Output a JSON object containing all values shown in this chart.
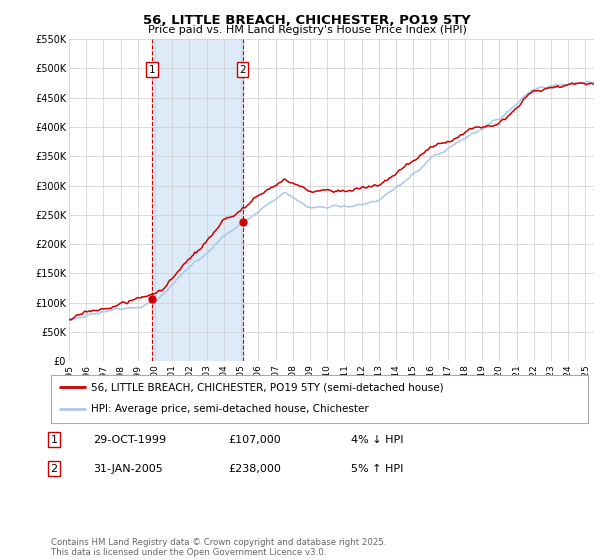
{
  "title": "56, LITTLE BREACH, CHICHESTER, PO19 5TY",
  "subtitle": "Price paid vs. HM Land Registry's House Price Index (HPI)",
  "x_start": 1995.0,
  "x_end": 2025.5,
  "y_min": 0,
  "y_max": 550000,
  "y_ticks": [
    0,
    50000,
    100000,
    150000,
    200000,
    250000,
    300000,
    350000,
    400000,
    450000,
    500000,
    550000
  ],
  "y_tick_labels": [
    "£0",
    "£50K",
    "£100K",
    "£150K",
    "£200K",
    "£250K",
    "£300K",
    "£350K",
    "£400K",
    "£450K",
    "£500K",
    "£550K"
  ],
  "sale1_year": 1999.83,
  "sale1_price": 107000,
  "sale1_label": "1",
  "sale1_date_str": "29-OCT-1999",
  "sale1_price_str": "£107,000",
  "sale1_hpi_str": "4% ↓ HPI",
  "sale2_year": 2005.08,
  "sale2_price": 238000,
  "sale2_label": "2",
  "sale2_date_str": "31-JAN-2005",
  "sale2_price_str": "£238,000",
  "sale2_hpi_str": "5% ↑ HPI",
  "hpi_line_color": "#aac8e8",
  "price_line_color": "#cc0000",
  "shade_color": "#ddeaf7",
  "grid_color": "#cccccc",
  "legend1_label": "56, LITTLE BREACH, CHICHESTER, PO19 5TY (semi-detached house)",
  "legend2_label": "HPI: Average price, semi-detached house, Chichester",
  "footnote": "Contains HM Land Registry data © Crown copyright and database right 2025.\nThis data is licensed under the Open Government Licence v3.0.",
  "x_tick_years": [
    1995,
    1996,
    1997,
    1998,
    1999,
    2000,
    2001,
    2002,
    2003,
    2004,
    2005,
    2006,
    2007,
    2008,
    2009,
    2010,
    2011,
    2012,
    2013,
    2014,
    2015,
    2016,
    2017,
    2018,
    2019,
    2020,
    2021,
    2022,
    2023,
    2024,
    2025
  ]
}
